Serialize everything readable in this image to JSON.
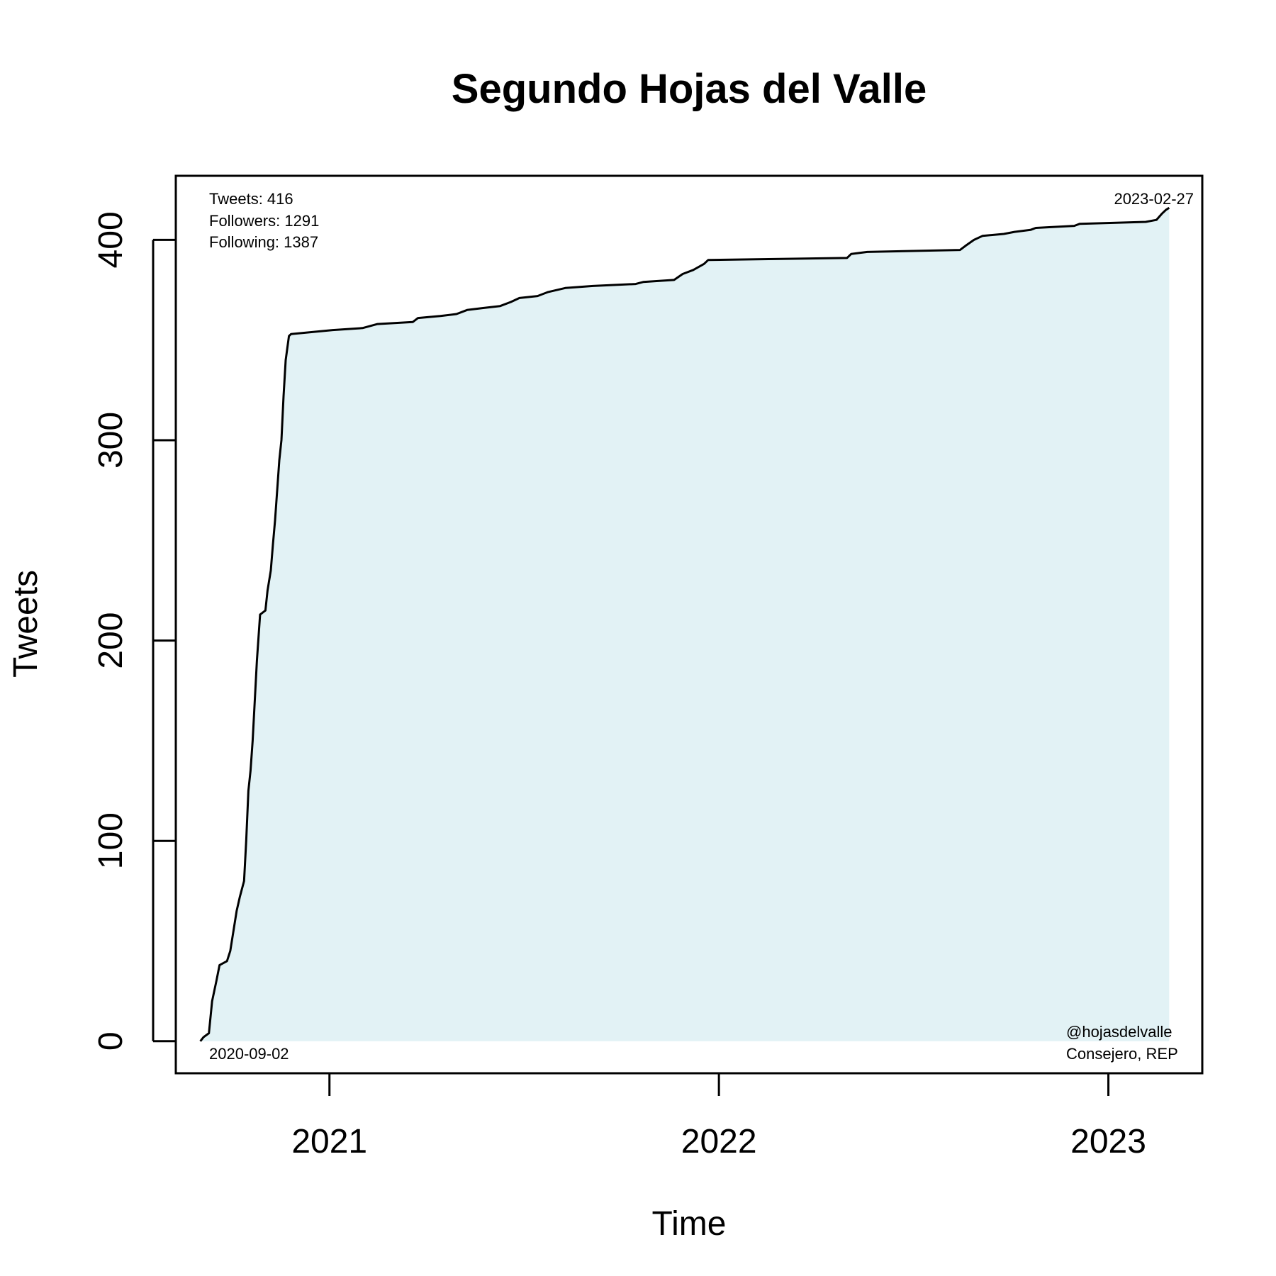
{
  "chart_data": {
    "type": "area",
    "title": "Segundo Hojas del Valle",
    "xlabel": "Time",
    "ylabel": "Tweets",
    "xlim": [
      "2020-08-10",
      "2023-03-30"
    ],
    "ylim": [
      -16,
      432
    ],
    "x_ticks": [
      {
        "date": "2021-01-01",
        "label": "2021"
      },
      {
        "date": "2022-01-01",
        "label": "2022"
      },
      {
        "date": "2023-01-01",
        "label": "2023"
      }
    ],
    "y_ticks": [
      0,
      100,
      200,
      300,
      400
    ],
    "fill_color": "#e2f2f5",
    "line_color": "#000000",
    "stats": {
      "tweets": "Tweets: 416",
      "followers": "Followers: 1291",
      "following": "Following: 1387"
    },
    "start_date_label": "2020-09-02",
    "end_date_label": "2023-02-27",
    "handle": "@hojasdelvalle",
    "role": "Consejero, REP",
    "series": [
      {
        "points": [
          [
            "2020-09-02",
            0
          ],
          [
            "2020-09-05",
            2
          ],
          [
            "2020-09-10",
            4
          ],
          [
            "2020-09-13",
            20
          ],
          [
            "2020-09-17",
            30
          ],
          [
            "2020-09-20",
            38
          ],
          [
            "2020-09-27",
            40
          ],
          [
            "2020-09-30",
            45
          ],
          [
            "2020-10-03",
            55
          ],
          [
            "2020-10-06",
            65
          ],
          [
            "2020-10-09",
            72
          ],
          [
            "2020-10-13",
            80
          ],
          [
            "2020-10-15",
            100
          ],
          [
            "2020-10-17",
            125
          ],
          [
            "2020-10-19",
            135
          ],
          [
            "2020-10-21",
            150
          ],
          [
            "2020-10-23",
            170
          ],
          [
            "2020-10-25",
            190
          ],
          [
            "2020-10-28",
            213
          ],
          [
            "2020-11-02",
            215
          ],
          [
            "2020-11-04",
            225
          ],
          [
            "2020-11-07",
            235
          ],
          [
            "2020-11-09",
            248
          ],
          [
            "2020-11-11",
            260
          ],
          [
            "2020-11-13",
            275
          ],
          [
            "2020-11-15",
            290
          ],
          [
            "2020-11-17",
            300
          ],
          [
            "2020-11-19",
            322
          ],
          [
            "2020-11-21",
            340
          ],
          [
            "2020-11-24",
            352
          ],
          [
            "2020-11-26",
            353
          ],
          [
            "2021-01-04",
            355
          ],
          [
            "2021-02-01",
            356
          ],
          [
            "2021-02-15",
            358
          ],
          [
            "2021-03-20",
            359
          ],
          [
            "2021-03-25",
            361
          ],
          [
            "2021-04-15",
            362
          ],
          [
            "2021-04-30",
            363
          ],
          [
            "2021-05-10",
            365
          ],
          [
            "2021-05-25",
            366
          ],
          [
            "2021-06-10",
            367
          ],
          [
            "2021-06-20",
            369
          ],
          [
            "2021-06-28",
            371
          ],
          [
            "2021-07-15",
            372
          ],
          [
            "2021-07-25",
            374
          ],
          [
            "2021-08-10",
            376
          ],
          [
            "2021-09-05",
            377
          ],
          [
            "2021-10-15",
            378
          ],
          [
            "2021-10-22",
            379
          ],
          [
            "2021-11-20",
            380
          ],
          [
            "2021-11-28",
            383
          ],
          [
            "2021-12-08",
            385
          ],
          [
            "2021-12-18",
            388
          ],
          [
            "2021-12-22",
            390
          ],
          [
            "2022-05-01",
            391
          ],
          [
            "2022-05-05",
            393
          ],
          [
            "2022-05-20",
            394
          ],
          [
            "2022-08-15",
            395
          ],
          [
            "2022-08-20",
            397
          ],
          [
            "2022-08-28",
            400
          ],
          [
            "2022-09-05",
            402
          ],
          [
            "2022-09-25",
            403
          ],
          [
            "2022-10-05",
            404
          ],
          [
            "2022-10-20",
            405
          ],
          [
            "2022-10-25",
            406
          ],
          [
            "2022-11-30",
            407
          ],
          [
            "2022-12-05",
            408
          ],
          [
            "2023-02-05",
            409
          ],
          [
            "2023-02-15",
            410
          ],
          [
            "2023-02-20",
            413
          ],
          [
            "2023-02-24",
            415
          ],
          [
            "2023-02-27",
            416
          ]
        ]
      }
    ]
  }
}
